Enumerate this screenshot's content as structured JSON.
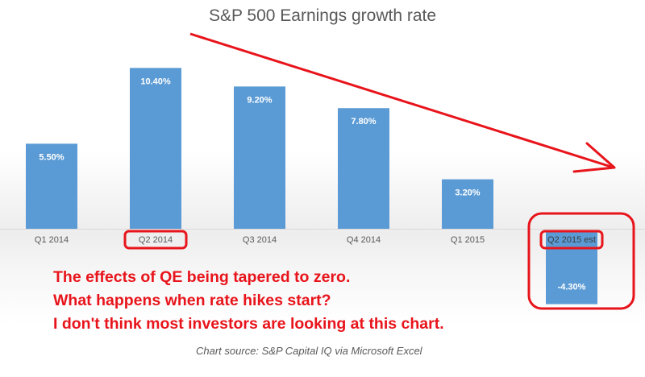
{
  "chart_data": {
    "type": "bar",
    "title": "S&P 500 Earnings growth rate",
    "categories": [
      "Q1 2014",
      "Q2 2014",
      "Q3 2014",
      "Q4 2014",
      "Q1 2015",
      "Q2 2015 est"
    ],
    "values": [
      5.5,
      10.4,
      9.2,
      7.8,
      3.2,
      -4.3
    ],
    "data_labels": [
      "5.50%",
      "10.40%",
      "9.20%",
      "7.80%",
      "3.20%",
      "-4.30%"
    ],
    "ylim": [
      -4.3,
      10.4
    ],
    "grid": false,
    "legend": "none",
    "source": "Chart source: S&P Capital IQ via Microsoft Excel",
    "colors": {
      "bar": "#5b9bd5",
      "annotation": "#e8141b",
      "text": "#595959"
    }
  },
  "annotations": {
    "lines": [
      "The effects of QE being tapered to zero.",
      "What happens when rate hikes start?",
      "I don't think most investors are looking at this chart."
    ],
    "highlighted_categories": [
      "Q2 2014",
      "Q2 2015 est"
    ],
    "arrow": "downward-trend"
  }
}
